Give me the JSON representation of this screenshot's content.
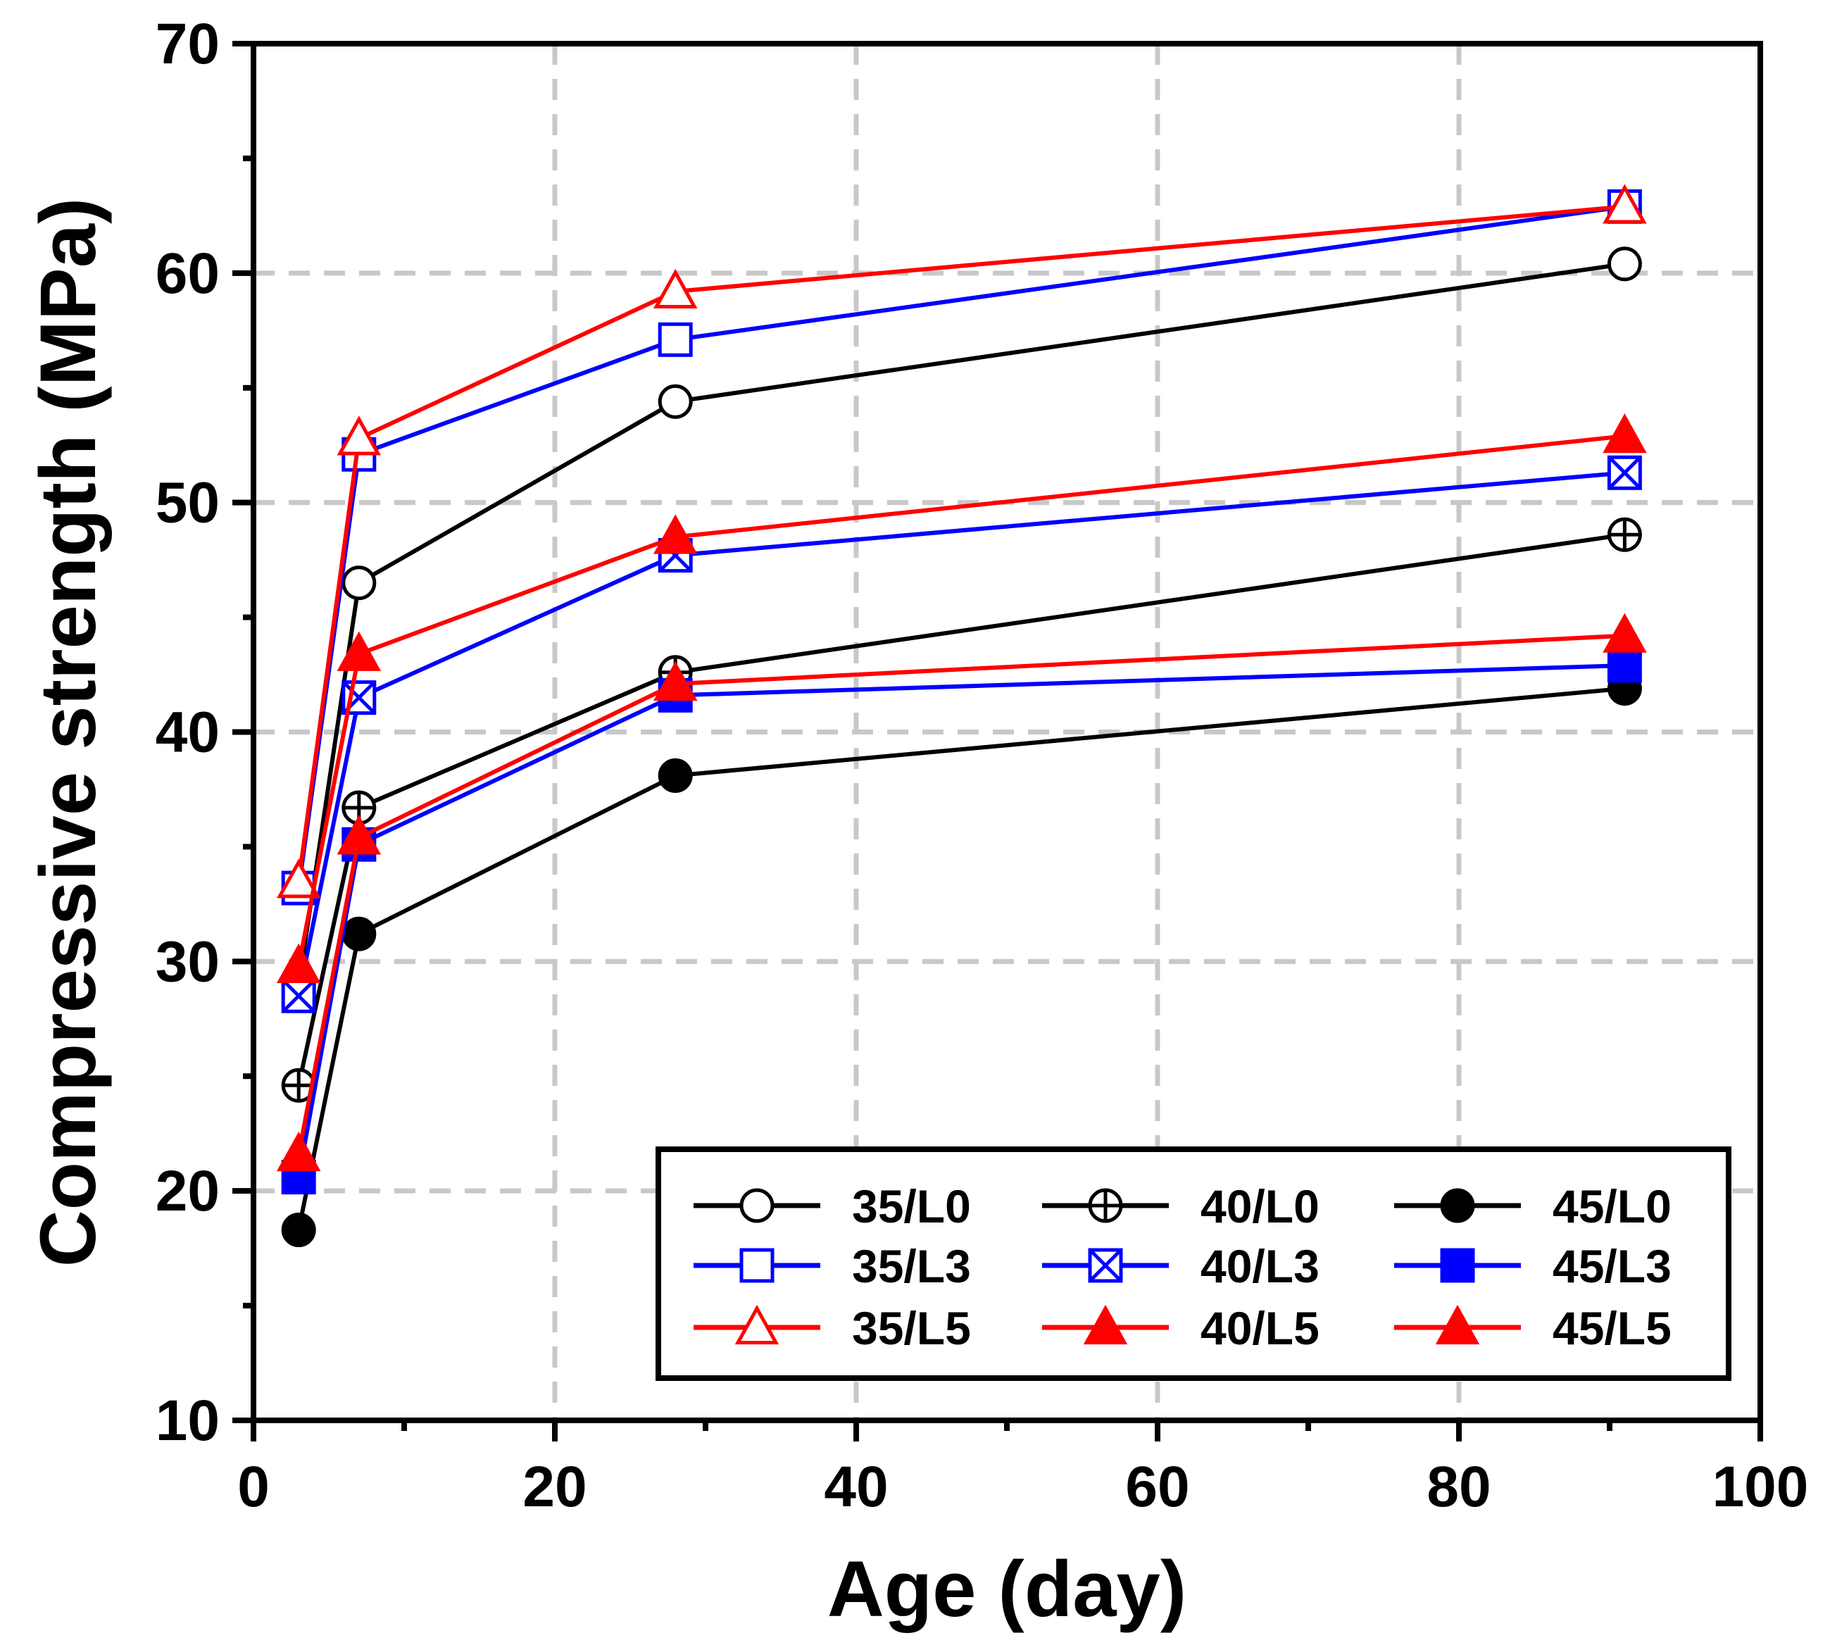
{
  "chart_data": {
    "type": "line",
    "title": "",
    "xlabel": "Age (day)",
    "ylabel": "Compressive strength (MPa)",
    "xlim": [
      0,
      100
    ],
    "ylim": [
      10,
      70
    ],
    "xticks": [
      0,
      20,
      40,
      60,
      80,
      100
    ],
    "xtick_labels": [
      "0",
      "20",
      "40",
      "60",
      "80",
      "100"
    ],
    "yticks": [
      10,
      20,
      30,
      40,
      50,
      60,
      70
    ],
    "ytick_labels": [
      "10",
      "20",
      "30",
      "40",
      "50",
      "60",
      "70"
    ],
    "grid": true,
    "legend_position": "bottom-right",
    "x": [
      3,
      7,
      28,
      91
    ],
    "series": [
      {
        "name": "35/L0",
        "color": "#000000",
        "marker": "circle-open",
        "values": [
          29.0,
          46.5,
          54.4,
          60.4
        ]
      },
      {
        "name": "40/L0",
        "color": "#000000",
        "marker": "circle-plus",
        "values": [
          24.6,
          36.7,
          42.6,
          48.6
        ]
      },
      {
        "name": "45/L0",
        "color": "#000000",
        "marker": "circle-filled",
        "values": [
          18.3,
          31.2,
          38.1,
          41.9
        ]
      },
      {
        "name": "35/L3",
        "color": "#0000ff",
        "marker": "square-open",
        "values": [
          33.2,
          52.1,
          57.1,
          62.9
        ]
      },
      {
        "name": "40/L3",
        "color": "#0000ff",
        "marker": "square-x",
        "values": [
          28.5,
          41.5,
          47.7,
          51.3
        ]
      },
      {
        "name": "45/L3",
        "color": "#0000ff",
        "marker": "square-filled",
        "values": [
          20.6,
          35.1,
          41.6,
          42.9
        ]
      },
      {
        "name": "35/L5",
        "color": "#ff0000",
        "marker": "triangle-open",
        "values": [
          33.5,
          52.8,
          59.2,
          62.9
        ]
      },
      {
        "name": "40/L5",
        "color": "#ff0000",
        "marker": "triangle-filled",
        "values": [
          29.8,
          43.4,
          48.5,
          52.9
        ]
      },
      {
        "name": "45/L5",
        "color": "#ff0000",
        "marker": "triangle-filled",
        "values": [
          21.6,
          35.4,
          42.1,
          44.2
        ]
      }
    ]
  }
}
